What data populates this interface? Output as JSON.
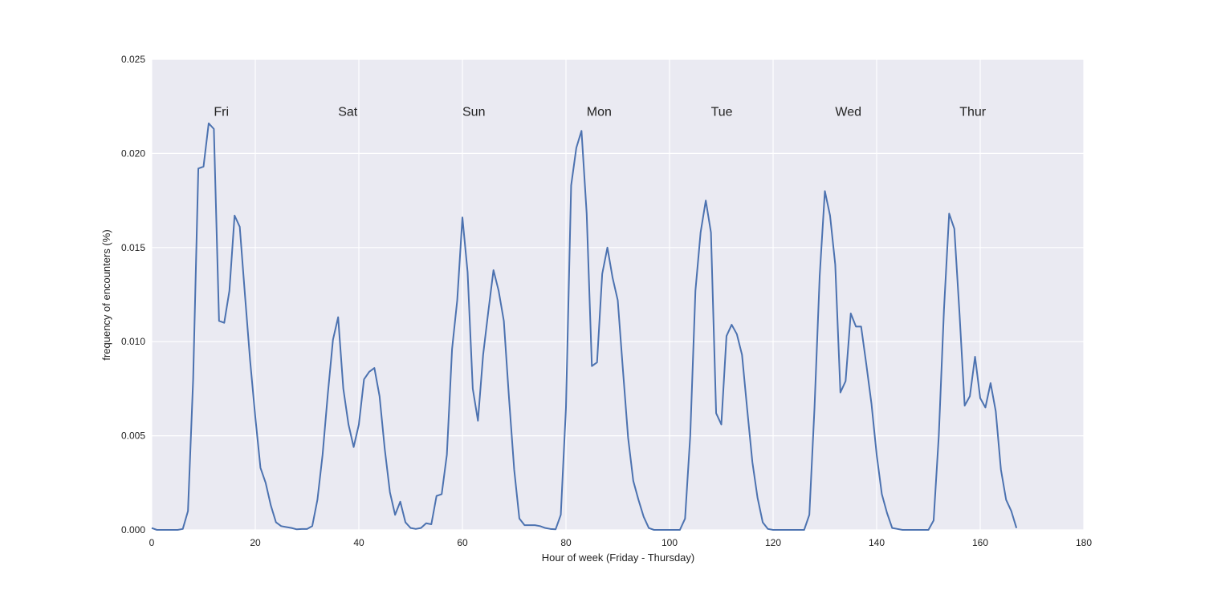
{
  "chart_data": {
    "type": "line",
    "xlabel": "Hour of week (Friday - Thursday)",
    "ylabel": "frequency of encounters (%)",
    "xlim": [
      0,
      180
    ],
    "xticks": [
      0,
      20,
      40,
      60,
      80,
      100,
      120,
      140,
      160,
      180
    ],
    "ylim": [
      0,
      0.025
    ],
    "yticks": [
      {
        "value": 0,
        "label": "0.000"
      },
      {
        "value": 0.005,
        "label": "0.005"
      },
      {
        "value": 0.01,
        "label": "0.010"
      },
      {
        "value": 0.015,
        "label": "0.015"
      },
      {
        "value": 0.02,
        "label": "0.020"
      },
      {
        "value": 0.025,
        "label": "0.025"
      }
    ],
    "grid": true,
    "annotations": [
      {
        "text": "Fri",
        "x": 12,
        "y": 0.022
      },
      {
        "text": "Sat",
        "x": 36,
        "y": 0.022
      },
      {
        "text": "Sun",
        "x": 60,
        "y": 0.022
      },
      {
        "text": "Mon",
        "x": 84,
        "y": 0.022
      },
      {
        "text": "Tue",
        "x": 108,
        "y": 0.022
      },
      {
        "text": "Wed",
        "x": 132,
        "y": 0.022
      },
      {
        "text": "Thur",
        "x": 156,
        "y": 0.022
      }
    ],
    "x": [
      0,
      1,
      2,
      3,
      4,
      5,
      6,
      7,
      8,
      9,
      10,
      11,
      12,
      13,
      14,
      15,
      16,
      17,
      18,
      19,
      20,
      21,
      22,
      23,
      24,
      25,
      26,
      27,
      28,
      29,
      30,
      31,
      32,
      33,
      34,
      35,
      36,
      37,
      38,
      39,
      40,
      41,
      42,
      43,
      44,
      45,
      46,
      47,
      48,
      49,
      50,
      51,
      52,
      53,
      54,
      55,
      56,
      57,
      58,
      59,
      60,
      61,
      62,
      63,
      64,
      65,
      66,
      67,
      68,
      69,
      70,
      71,
      72,
      73,
      74,
      75,
      76,
      77,
      78,
      79,
      80,
      81,
      82,
      83,
      84,
      85,
      86,
      87,
      88,
      89,
      90,
      91,
      92,
      93,
      94,
      95,
      96,
      97,
      98,
      99,
      100,
      101,
      102,
      103,
      104,
      105,
      106,
      107,
      108,
      109,
      110,
      111,
      112,
      113,
      114,
      115,
      116,
      117,
      118,
      119,
      120,
      121,
      122,
      123,
      124,
      125,
      126,
      127,
      128,
      129,
      130,
      131,
      132,
      133,
      134,
      135,
      136,
      137,
      138,
      139,
      140,
      141,
      142,
      143,
      144,
      145,
      146,
      147,
      148,
      149,
      150,
      151,
      152,
      153,
      154,
      155,
      156,
      157,
      158,
      159,
      160,
      161,
      162,
      163,
      164,
      165,
      166,
      167
    ],
    "series": [
      {
        "color": "#4c72b0",
        "values": [
          0.0001,
          0,
          0,
          0,
          0,
          0,
          5e-05,
          0.001,
          0.008,
          0.0192,
          0.0193,
          0.0216,
          0.0213,
          0.0111,
          0.011,
          0.0127,
          0.0167,
          0.0161,
          0.0125,
          0.009,
          0.006,
          0.0033,
          0.0025,
          0.0013,
          0.0004,
          0.0002,
          0.00015,
          0.0001,
          3e-05,
          5e-05,
          5e-05,
          0.0002,
          0.0016,
          0.004,
          0.0072,
          0.0101,
          0.0113,
          0.0075,
          0.0056,
          0.0044,
          0.0056,
          0.008,
          0.0084,
          0.0086,
          0.0071,
          0.0043,
          0.002,
          0.0008,
          0.0015,
          0.0004,
          0.0001,
          5e-05,
          0.0001,
          0.00035,
          0.0003,
          0.0018,
          0.0019,
          0.004,
          0.0096,
          0.0122,
          0.0166,
          0.0137,
          0.0075,
          0.0058,
          0.0093,
          0.0116,
          0.0138,
          0.0127,
          0.0111,
          0.007,
          0.0032,
          0.0006,
          0.00025,
          0.00025,
          0.00025,
          0.0002,
          0.0001,
          5e-05,
          3e-05,
          0.0008,
          0.0065,
          0.0183,
          0.0203,
          0.0212,
          0.0168,
          0.0087,
          0.0089,
          0.0136,
          0.015,
          0.0134,
          0.0122,
          0.0085,
          0.0049,
          0.0026,
          0.0016,
          0.0007,
          0.0001,
          0,
          0,
          0,
          0,
          0,
          0,
          0.0006,
          0.005,
          0.0127,
          0.0158,
          0.0175,
          0.0158,
          0.0062,
          0.0056,
          0.0103,
          0.0109,
          0.0104,
          0.0093,
          0.0064,
          0.0036,
          0.0017,
          0.0004,
          5e-05,
          0,
          0,
          0,
          0,
          0,
          0,
          0,
          0.0008,
          0.0065,
          0.0135,
          0.018,
          0.0167,
          0.0141,
          0.0073,
          0.0079,
          0.0115,
          0.0108,
          0.0108,
          0.0088,
          0.0067,
          0.004,
          0.0019,
          0.0009,
          0.0001,
          5e-05,
          0,
          0,
          0,
          0,
          0,
          0,
          0.0005,
          0.005,
          0.0117,
          0.0168,
          0.016,
          0.0115,
          0.0066,
          0.0071,
          0.0092,
          0.007,
          0.0065,
          0.0078,
          0.0063,
          0.0032,
          0.0016,
          0.001,
          0.0001
        ]
      }
    ]
  }
}
